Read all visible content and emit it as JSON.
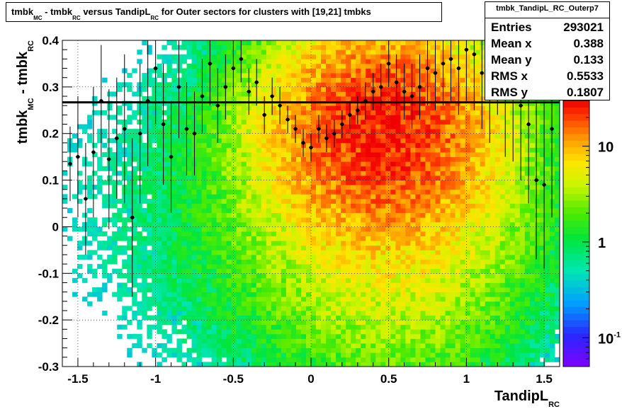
{
  "title": {
    "parts": [
      {
        "t": "tmbk",
        "sub": false
      },
      {
        "t": "MC",
        "sub": true
      },
      {
        "t": " - tmbk",
        "sub": false
      },
      {
        "t": "RC",
        "sub": true
      },
      {
        "t": " versus TandipL",
        "sub": false
      },
      {
        "t": "RC",
        "sub": true
      },
      {
        "t": " for Outer sectors for clusters with [19,21] tmbks",
        "sub": false
      }
    ]
  },
  "stats": {
    "name": "tmbk_TandipL_RC_Outerp7",
    "rows": [
      {
        "key": "Entries",
        "value": "293021"
      },
      {
        "key": "Mean x",
        "value": "0.388"
      },
      {
        "key": "Mean y",
        "value": "0.133"
      },
      {
        "key": "RMS x",
        "value": "0.5533"
      },
      {
        "key": "RMS y",
        "value": "0.1807"
      }
    ]
  },
  "axis_titles": {
    "x_main": "TandipL",
    "x_sub": "RC",
    "y_main": "tmbk",
    "y_sub1": "MC",
    "y_mid": " - tmbk",
    "y_sub2": "RC"
  },
  "chart_data": {
    "type": "heatmap",
    "xlim": [
      -1.6,
      1.6
    ],
    "ylim": [
      -0.3,
      0.4
    ],
    "x_ticks": [
      {
        "v": -1.5,
        "label": "-1.5"
      },
      {
        "v": -1,
        "label": "-1"
      },
      {
        "v": -0.5,
        "label": "-0.5"
      },
      {
        "v": 0,
        "label": "0"
      },
      {
        "v": 0.5,
        "label": "0.5"
      },
      {
        "v": 1,
        "label": "1"
      },
      {
        "v": 1.5,
        "label": "1.5"
      }
    ],
    "y_ticks": [
      {
        "v": -0.3,
        "label": "-0.3"
      },
      {
        "v": -0.2,
        "label": "-0.2"
      },
      {
        "v": -0.1,
        "label": "-0.1"
      },
      {
        "v": 0,
        "label": "0"
      },
      {
        "v": 0.1,
        "label": "0.1"
      },
      {
        "v": 0.2,
        "label": "0.2"
      },
      {
        "v": 0.3,
        "label": "0.3"
      },
      {
        "v": 0.4,
        "label": "0.4"
      }
    ],
    "z_scale": "log",
    "z_range": [
      0.05,
      30
    ],
    "z_ticks": [
      {
        "v": 10,
        "label": "10",
        "sup": ""
      },
      {
        "v": 1,
        "label": "1",
        "sup": ""
      },
      {
        "v": 0.1,
        "label": "10",
        "sup": "-1"
      }
    ],
    "grid": true,
    "density_model": {
      "blobs": [
        {
          "x": 0.45,
          "y": 0.22,
          "sx": 0.42,
          "sy": 0.13,
          "amp": 22
        },
        {
          "x": 0.55,
          "y": 0.02,
          "sx": 0.55,
          "sy": 0.22,
          "amp": 5
        },
        {
          "x": 0.0,
          "y": 0.05,
          "sx": 0.95,
          "sy": 0.25,
          "amp": 1.3
        }
      ]
    },
    "profile": {
      "x": [
        -1.55,
        -1.5,
        -1.45,
        -1.4,
        -1.35,
        -1.3,
        -1.25,
        -1.2,
        -1.15,
        -1.1,
        -1.05,
        -1.0,
        -0.95,
        -0.9,
        -0.85,
        -0.8,
        -0.75,
        -0.7,
        -0.65,
        -0.6,
        -0.55,
        -0.5,
        -0.45,
        -0.4,
        -0.35,
        -0.3,
        -0.25,
        -0.2,
        -0.15,
        -0.1,
        -0.05,
        0.0,
        0.05,
        0.1,
        0.15,
        0.2,
        0.25,
        0.3,
        0.35,
        0.4,
        0.45,
        0.5,
        0.55,
        0.6,
        0.65,
        0.7,
        0.75,
        0.8,
        0.85,
        0.9,
        0.95,
        1.0,
        1.05,
        1.1,
        1.15,
        1.2,
        1.25,
        1.3,
        1.35,
        1.4,
        1.45,
        1.5,
        1.55
      ],
      "y": [
        0.135,
        0.15,
        0.06,
        0.16,
        0.27,
        0.145,
        0.19,
        0.21,
        0.02,
        0.2,
        0.27,
        0.34,
        0.22,
        0.15,
        0.3,
        0.21,
        0.2,
        0.28,
        0.35,
        0.26,
        0.3,
        0.34,
        0.36,
        0.29,
        0.31,
        0.24,
        0.28,
        0.26,
        0.23,
        0.21,
        0.18,
        0.17,
        0.21,
        0.19,
        0.2,
        0.22,
        0.24,
        0.25,
        0.27,
        0.29,
        0.3,
        0.35,
        0.31,
        0.29,
        0.28,
        0.3,
        0.34,
        0.33,
        0.35,
        0.36,
        0.34,
        0.38,
        0.37,
        0.33,
        0.31,
        0.38,
        0.3,
        0.29,
        0.26,
        0.22,
        0.1,
        0.09,
        0.21
      ],
      "err": [
        0.08,
        0.13,
        0.12,
        0.14,
        0.12,
        0.15,
        0.13,
        0.16,
        0.17,
        0.15,
        0.14,
        0.12,
        0.13,
        0.12,
        0.11,
        0.1,
        0.09,
        0.08,
        0.09,
        0.08,
        0.07,
        0.06,
        0.05,
        0.05,
        0.05,
        0.04,
        0.04,
        0.04,
        0.03,
        0.03,
        0.03,
        0.03,
        0.03,
        0.03,
        0.03,
        0.03,
        0.03,
        0.03,
        0.04,
        0.04,
        0.05,
        0.05,
        0.06,
        0.06,
        0.07,
        0.07,
        0.08,
        0.08,
        0.09,
        0.09,
        0.1,
        0.11,
        0.12,
        0.12,
        0.13,
        0.14,
        0.15,
        0.15,
        0.16,
        0.17,
        0.17,
        0.18,
        0.19
      ]
    },
    "fit_line": {
      "y": 0.267
    }
  }
}
